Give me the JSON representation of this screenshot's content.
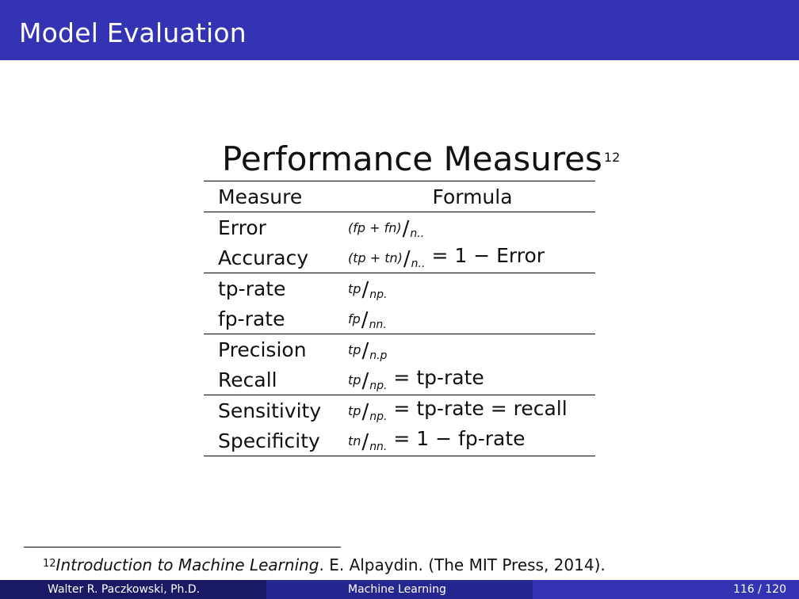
{
  "slide": {
    "title": "Model Evaluation"
  },
  "table": {
    "heading": "Performance Measures",
    "heading_footnote_mark": "12",
    "columns": [
      "Measure",
      "Formula"
    ],
    "rows": [
      {
        "measure": "Error",
        "numerator": "(fp + fn)",
        "denominator": "n..",
        "equals": ""
      },
      {
        "measure": "Accuracy",
        "numerator": "(tp + tn)",
        "denominator": "n..",
        "equals": "= 1 − Error"
      },
      {
        "measure": "tp-rate",
        "numerator": "tp",
        "denominator": "np.",
        "equals": ""
      },
      {
        "measure": "fp-rate",
        "numerator": "fp",
        "denominator": "nn.",
        "equals": ""
      },
      {
        "measure": "Precision",
        "numerator": "tp",
        "denominator": "n.p",
        "equals": ""
      },
      {
        "measure": "Recall",
        "numerator": "tp",
        "denominator": "np.",
        "equals": "= tp-rate"
      },
      {
        "measure": "Sensitivity",
        "numerator": "tp",
        "denominator": "np.",
        "equals": "= tp-rate = recall"
      },
      {
        "measure": "Specificity",
        "numerator": "tn",
        "denominator": "nn.",
        "equals": "= 1 − fp-rate"
      }
    ]
  },
  "footnote": {
    "mark": "12",
    "book_title": "Introduction to Machine Learning",
    "rest": ". E. Alpaydin. (The MIT Press, 2014)."
  },
  "footer": {
    "author": "Walter R. Paczkowski, Ph.D.",
    "course": "Machine Learning",
    "pages": "116 / 120"
  }
}
